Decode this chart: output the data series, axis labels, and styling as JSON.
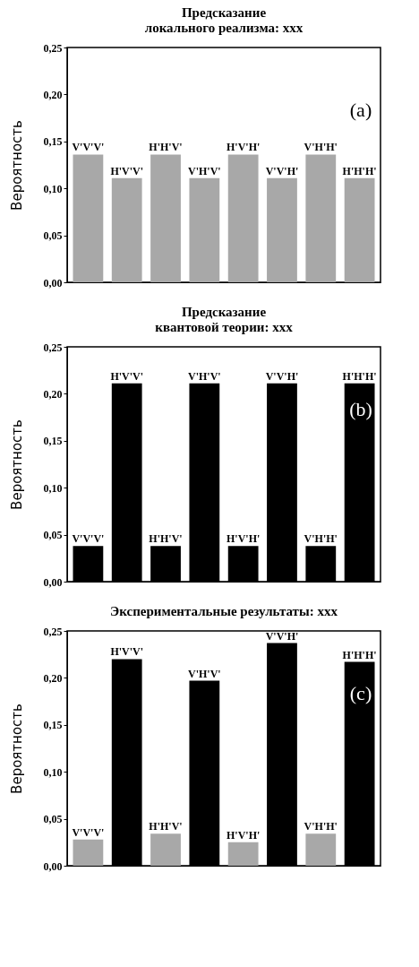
{
  "chart_data": [
    {
      "type": "bar",
      "title": "Предсказание\nлокального реализма: xxx",
      "ylabel": "Вероятность",
      "categories": [
        "V'V'V'",
        "H'V'V'",
        "H'H'V'",
        "V'H'V'",
        "H'V'H'",
        "V'V'H'",
        "V'H'H'",
        "H'H'H'"
      ],
      "values": [
        0.136,
        0.111,
        0.136,
        0.111,
        0.136,
        0.111,
        0.136,
        0.111
      ],
      "color": "#a8a8a8",
      "ylim": [
        0,
        0.25
      ],
      "yticks": [
        {
          "value": 0,
          "label": "0,00"
        },
        {
          "value": 0.05,
          "label": "0,05"
        },
        {
          "value": 0.1,
          "label": "0,10"
        },
        {
          "value": 0.15,
          "label": "0,15"
        },
        {
          "value": 0.2,
          "label": "0,20"
        },
        {
          "value": 0.25,
          "label": "0,25"
        }
      ],
      "tick_labels": "y",
      "grid": false,
      "annotations": [
        "(a)"
      ]
    },
    {
      "type": "bar",
      "title": "Предсказание\nквантовой теории: xxx",
      "ylabel": "Вероятность",
      "categories": [
        "V'V'V'",
        "H'V'V'",
        "H'H'V'",
        "V'H'V'",
        "H'V'H'",
        "V'V'H'",
        "V'H'H'",
        "H'H'H'"
      ],
      "values": [
        0.038,
        0.211,
        0.038,
        0.211,
        0.038,
        0.211,
        0.038,
        0.211
      ],
      "color": "#000000",
      "ylim": [
        0,
        0.25
      ],
      "yticks": [
        {
          "value": 0,
          "label": "0,00"
        },
        {
          "value": 0.05,
          "label": "0,05"
        },
        {
          "value": 0.1,
          "label": "0,10"
        },
        {
          "value": 0.15,
          "label": "0,15"
        },
        {
          "value": 0.2,
          "label": "0,20"
        },
        {
          "value": 0.25,
          "label": "0,25"
        }
      ],
      "tick_labels": "y",
      "grid": false,
      "annotations": [
        "(b)"
      ]
    },
    {
      "type": "bar",
      "title": "Экспериментальные результаты: xxx",
      "ylabel": "Вероятность",
      "categories": [
        "V'V'V'",
        "H'V'V'",
        "H'H'V'",
        "V'H'V'",
        "H'V'H'",
        "V'V'H'",
        "V'H'H'",
        "H'H'H'"
      ],
      "values": [
        0.028,
        0.22,
        0.034,
        0.197,
        0.025,
        0.237,
        0.034,
        0.217
      ],
      "colors": [
        "#a8a8a8",
        "#000000",
        "#a8a8a8",
        "#000000",
        "#a8a8a8",
        "#000000",
        "#a8a8a8",
        "#000000"
      ],
      "ylim": [
        0,
        0.25
      ],
      "yticks": [
        {
          "value": 0,
          "label": "0,00"
        },
        {
          "value": 0.05,
          "label": "0,05"
        },
        {
          "value": 0.1,
          "label": "0,10"
        },
        {
          "value": 0.15,
          "label": "0,15"
        },
        {
          "value": 0.2,
          "label": "0,20"
        },
        {
          "value": 0.25,
          "label": "0,25"
        }
      ],
      "tick_labels": "y",
      "grid": false,
      "annotations": [
        "(c)"
      ]
    }
  ]
}
